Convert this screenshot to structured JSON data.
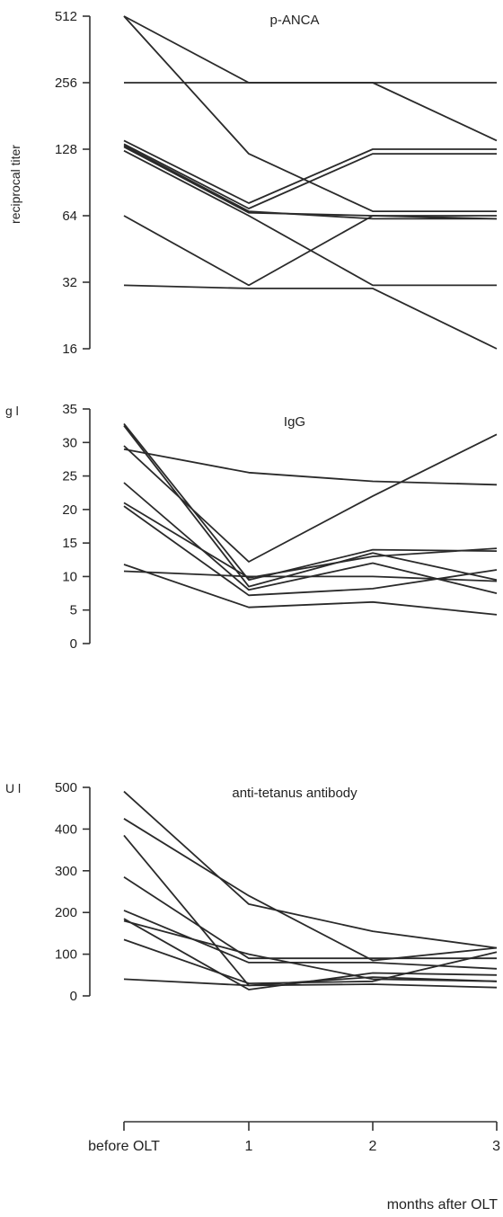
{
  "x_categories": [
    "before OLT",
    "1",
    "2",
    "3"
  ],
  "x_title": "months after OLT",
  "chart_data": [
    {
      "type": "line",
      "title": "p-ANCA",
      "ylabel": "reciprocal titer",
      "unit": "",
      "yscale": "log2",
      "ylim": [
        16,
        512
      ],
      "yticks": [
        16,
        32,
        64,
        128,
        256,
        512
      ],
      "series": [
        {
          "values": [
            512,
            256,
            256,
            140
          ]
        },
        {
          "values": [
            512,
            122,
            67,
            67
          ]
        },
        {
          "values": [
            256,
            256,
            256,
            256
          ]
        },
        {
          "values": [
            140,
            73,
            128,
            128
          ]
        },
        {
          "values": [
            135,
            69,
            122,
            122
          ]
        },
        {
          "values": [
            131,
            66,
            64,
            64
          ]
        },
        {
          "values": [
            126,
            64,
            31,
            31
          ]
        },
        {
          "values": [
            64,
            31,
            64,
            62
          ]
        },
        {
          "values": [
            31,
            30,
            30,
            16
          ]
        },
        {
          "values": [
            133,
            67,
            62,
            62
          ]
        }
      ]
    },
    {
      "type": "line",
      "title": "IgG",
      "ylabel": "",
      "unit": "g l",
      "yscale": "linear",
      "ylim": [
        0,
        35
      ],
      "yticks": [
        0,
        5,
        10,
        15,
        20,
        25,
        30,
        35
      ],
      "series": [
        {
          "values": [
            29.5,
            12.2,
            22,
            31.2
          ]
        },
        {
          "values": [
            29,
            25.5,
            24.2,
            23.7
          ]
        },
        {
          "values": [
            32.8,
            9.5,
            14,
            13.8
          ]
        },
        {
          "values": [
            32.5,
            8.5,
            13.5,
            9.5
          ]
        },
        {
          "values": [
            24,
            8,
            12,
            7.5
          ]
        },
        {
          "values": [
            21,
            9.8,
            13,
            14.2
          ]
        },
        {
          "values": [
            20.5,
            7.2,
            8.2,
            11
          ]
        },
        {
          "values": [
            11.8,
            5.4,
            6.2,
            4.3
          ]
        },
        {
          "values": [
            10.8,
            10,
            10,
            9.3
          ]
        }
      ]
    },
    {
      "type": "line",
      "title": "anti-tetanus antibody",
      "ylabel": "",
      "unit": "U l",
      "yscale": "linear",
      "ylim": [
        0,
        500
      ],
      "yticks": [
        0,
        100,
        200,
        300,
        400,
        500
      ],
      "series": [
        {
          "values": [
            490,
            220,
            155,
            115
          ]
        },
        {
          "values": [
            425,
            240,
            85,
            115
          ]
        },
        {
          "values": [
            385,
            25,
            45,
            35
          ]
        },
        {
          "values": [
            285,
            90,
            90,
            90
          ]
        },
        {
          "values": [
            205,
            80,
            80,
            65
          ]
        },
        {
          "values": [
            185,
            15,
            55,
            50
          ]
        },
        {
          "values": [
            180,
            100,
            40,
            35
          ]
        },
        {
          "values": [
            135,
            30,
            35,
            105
          ]
        },
        {
          "values": [
            40,
            25,
            28,
            20
          ]
        }
      ]
    }
  ]
}
